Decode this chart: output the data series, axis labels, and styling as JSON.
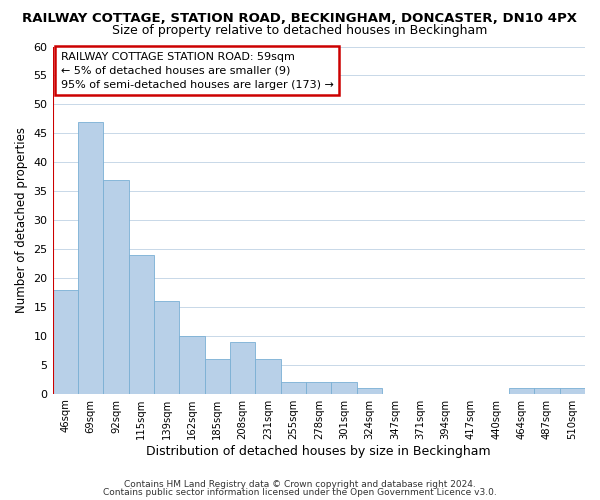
{
  "title": "RAILWAY COTTAGE, STATION ROAD, BECKINGHAM, DONCASTER, DN10 4PX",
  "subtitle": "Size of property relative to detached houses in Beckingham",
  "xlabel": "Distribution of detached houses by size in Beckingham",
  "ylabel": "Number of detached properties",
  "bar_color": "#b8d0e8",
  "bar_edge_color": "#7aafd4",
  "bin_labels": [
    "46sqm",
    "69sqm",
    "92sqm",
    "115sqm",
    "139sqm",
    "162sqm",
    "185sqm",
    "208sqm",
    "231sqm",
    "255sqm",
    "278sqm",
    "301sqm",
    "324sqm",
    "347sqm",
    "371sqm",
    "394sqm",
    "417sqm",
    "440sqm",
    "464sqm",
    "487sqm",
    "510sqm"
  ],
  "values": [
    18,
    47,
    37,
    24,
    16,
    10,
    6,
    9,
    6,
    2,
    2,
    2,
    1,
    0,
    0,
    0,
    0,
    0,
    1,
    1,
    1
  ],
  "ylim": [
    0,
    60
  ],
  "yticks": [
    0,
    5,
    10,
    15,
    20,
    25,
    30,
    35,
    40,
    45,
    50,
    55,
    60
  ],
  "vline_color": "#cc0000",
  "annotation_title": "RAILWAY COTTAGE STATION ROAD: 59sqm",
  "annotation_line1": "← 5% of detached houses are smaller (9)",
  "annotation_line2": "95% of semi-detached houses are larger (173) →",
  "annotation_box_edge": "#cc0000",
  "footer_line1": "Contains HM Land Registry data © Crown copyright and database right 2024.",
  "footer_line2": "Contains public sector information licensed under the Open Government Licence v3.0.",
  "background_color": "#ffffff",
  "grid_color": "#c8d8e8"
}
